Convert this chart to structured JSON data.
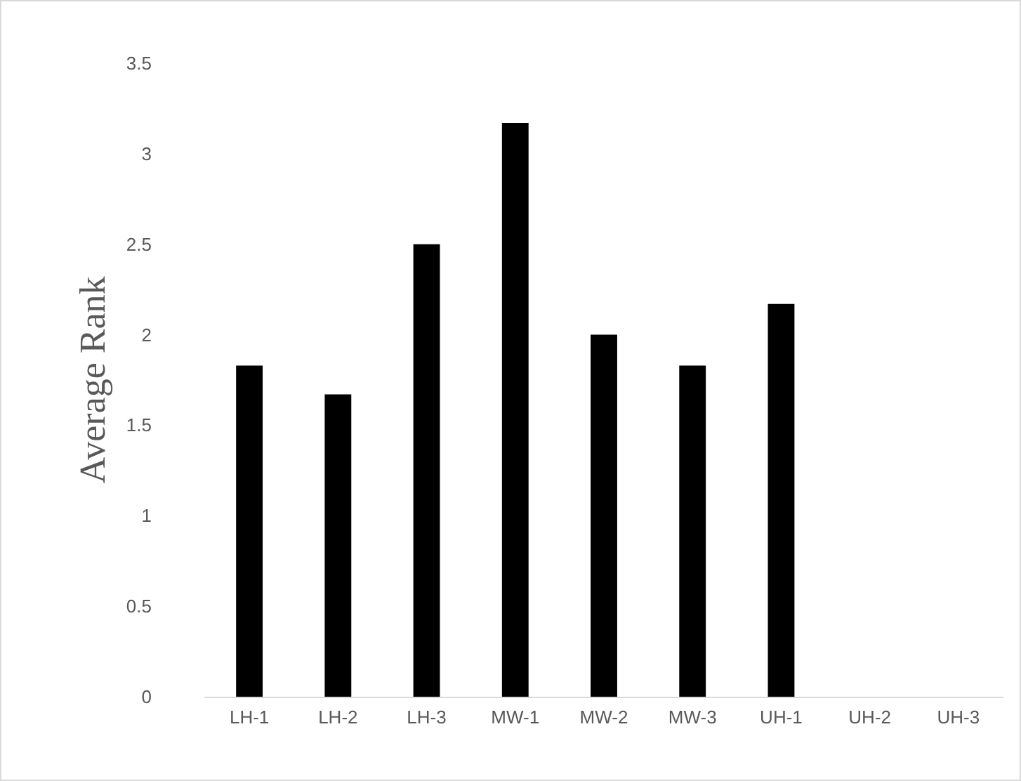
{
  "chart_data": {
    "type": "bar",
    "ylabel": "Average Rank",
    "categories": [
      "LH-1",
      "LH-2",
      "LH-3",
      "MW-1",
      "MW-2",
      "MW-3",
      "UH-1",
      "UH-2",
      "UH-3"
    ],
    "values": [
      1.83,
      1.67,
      2.5,
      3.17,
      2.0,
      1.83,
      2.17,
      0,
      0
    ],
    "color": "#000000",
    "ylim": [
      0,
      3.5
    ],
    "yticks": [
      0,
      0.5,
      1,
      1.5,
      2,
      2.5,
      3,
      3.5
    ],
    "grid": false
  }
}
